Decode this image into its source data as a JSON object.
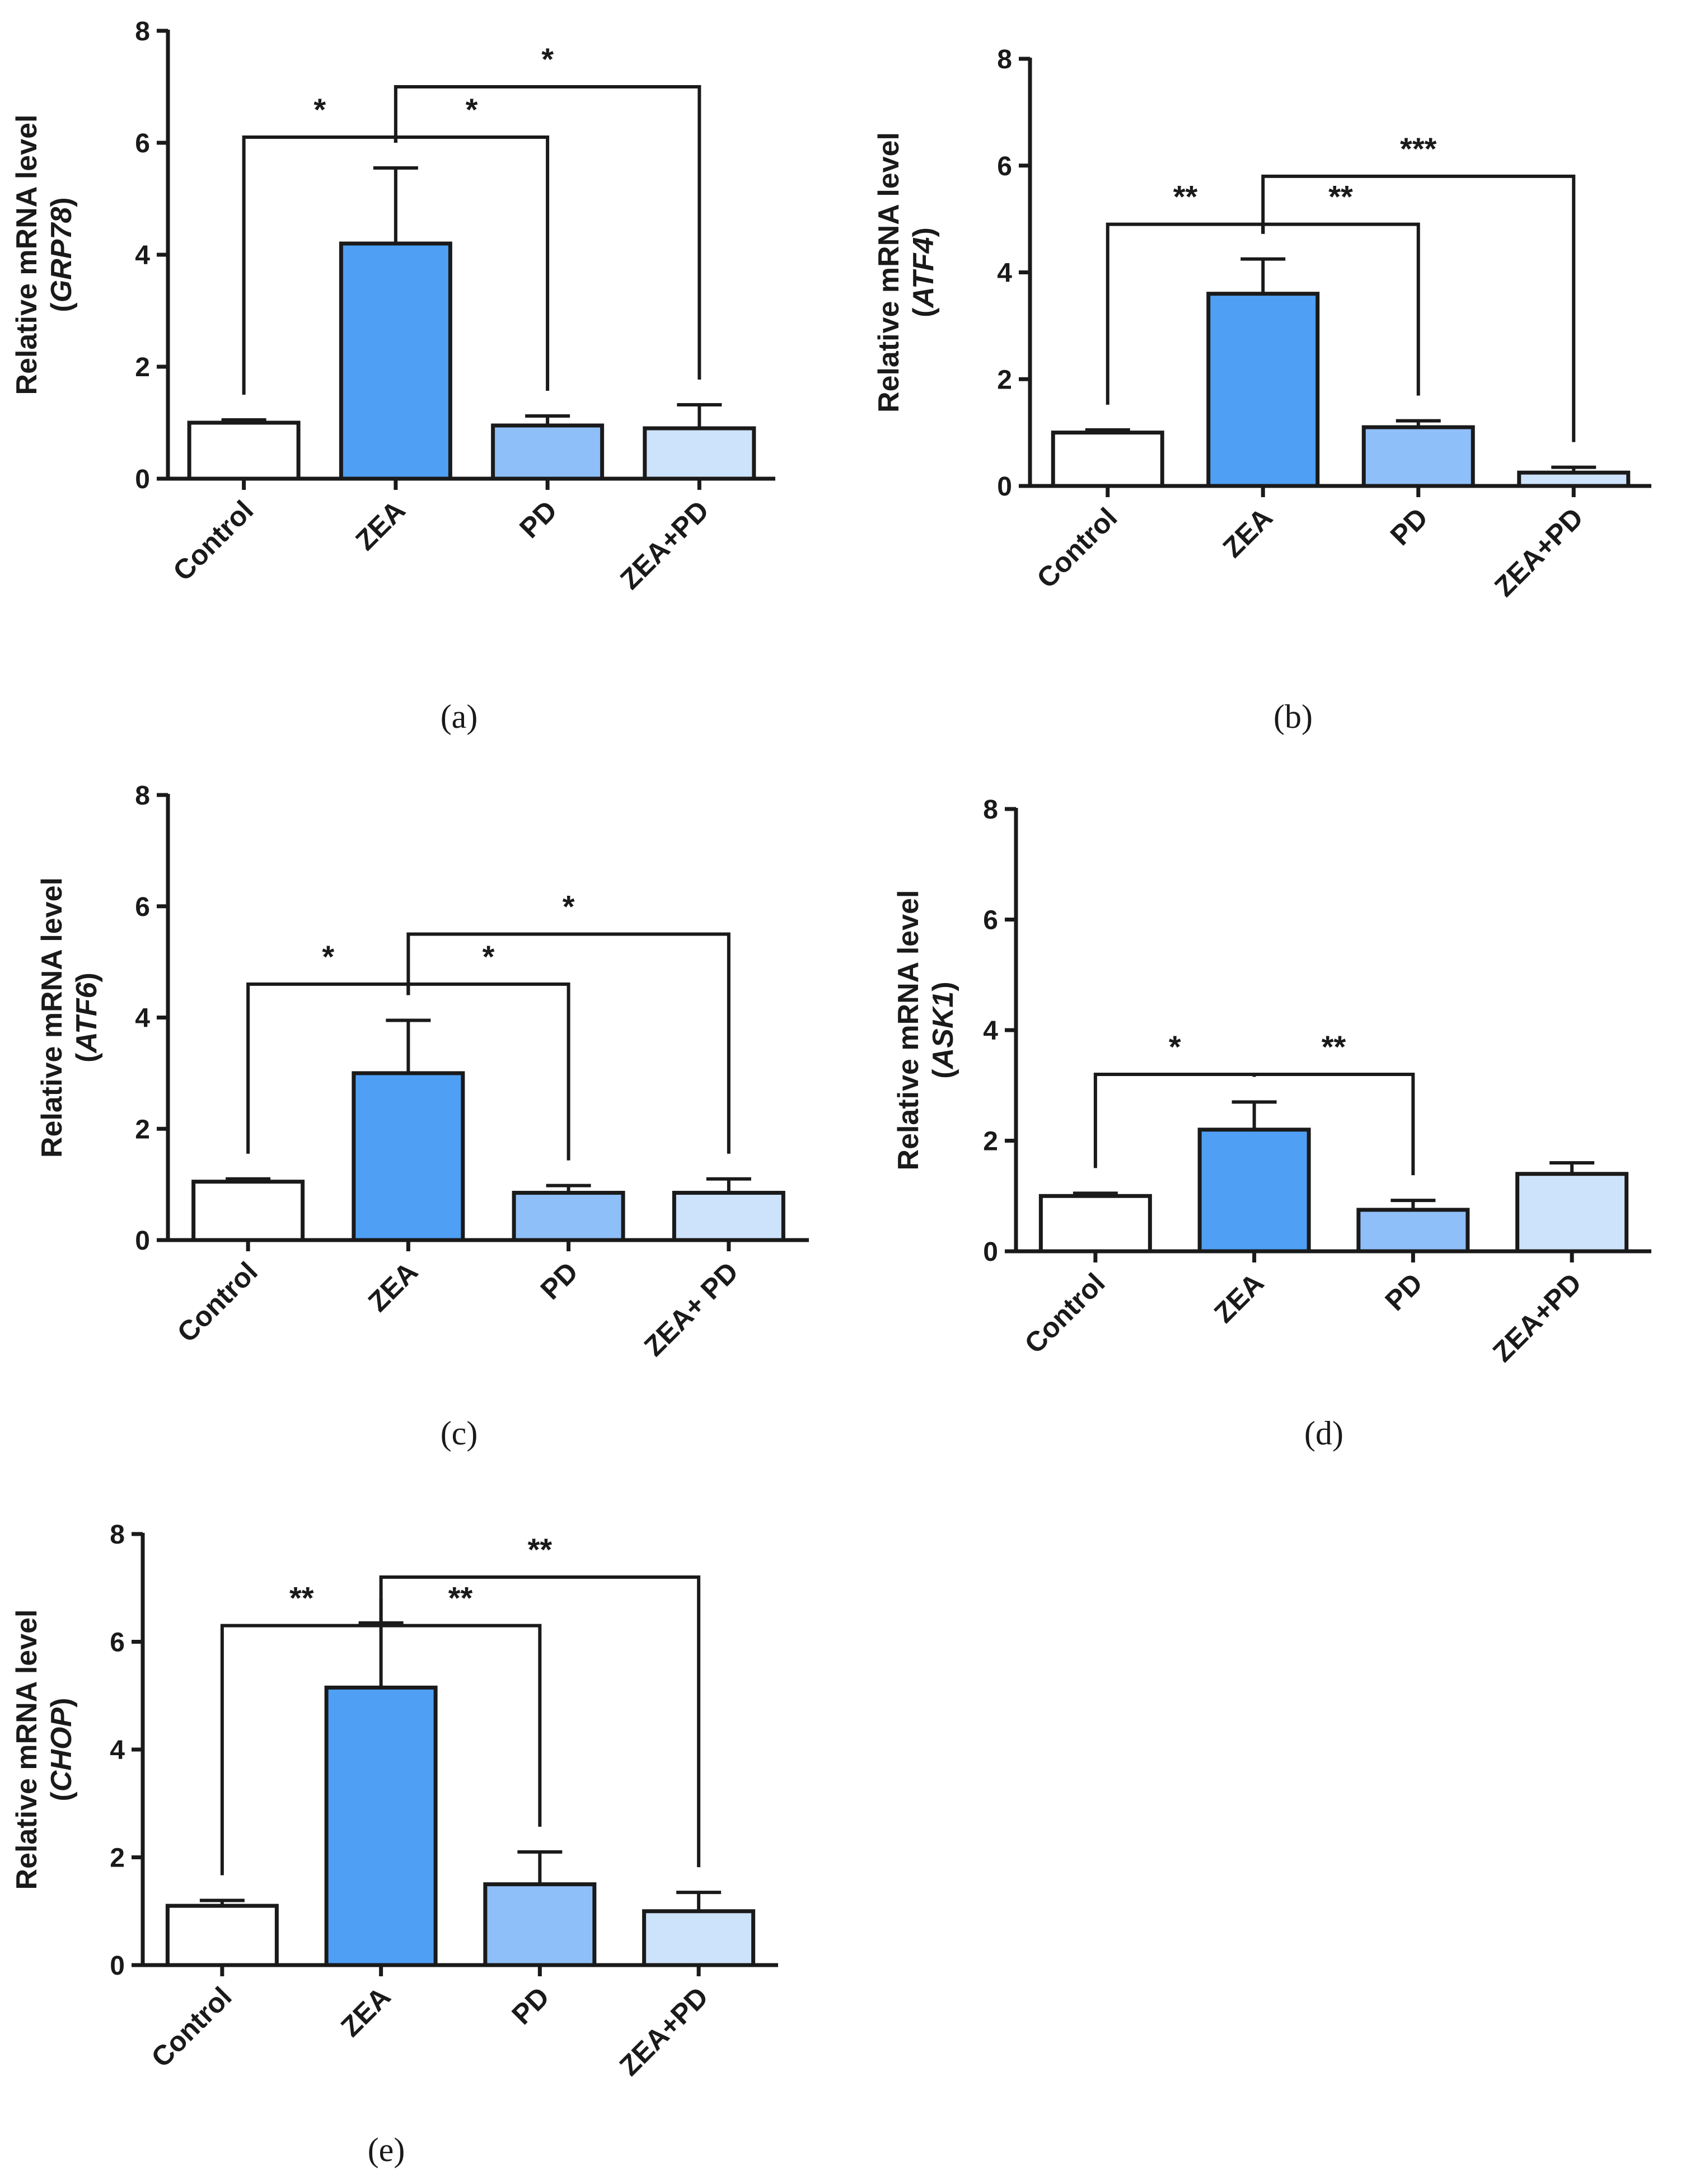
{
  "figure": {
    "colors": {
      "axis": "#1a1a1a",
      "Control": "#ffffff",
      "ZEA": "#4f9ff5",
      "PD": "#8fbff8",
      "ZEA+PD": "#cde2fb"
    }
  },
  "chart_data": [
    {
      "type": "bar",
      "panel_label": "(a)",
      "ylabel": "Relative mRNA level",
      "gene": "GRP78",
      "categories": [
        "Control",
        "ZEA",
        "PD",
        "ZEA+PD"
      ],
      "values": [
        1.0,
        4.2,
        0.95,
        0.9
      ],
      "errors": [
        0.05,
        1.35,
        0.17,
        0.42
      ],
      "ylim": [
        0,
        8
      ],
      "yticks": [
        0,
        2,
        4,
        6,
        8
      ],
      "significance": [
        {
          "from": 0,
          "to": 1,
          "label": "*",
          "level": 6.1
        },
        {
          "from": 1,
          "to": 2,
          "label": "*",
          "level": 6.1
        },
        {
          "from": 1,
          "to": 3,
          "label": "*",
          "level": 7.0
        }
      ]
    },
    {
      "type": "bar",
      "panel_label": "(b)",
      "ylabel": "Relative mRNA level",
      "gene": "ATF4",
      "categories": [
        "Control",
        "ZEA",
        "PD",
        "ZEA+PD"
      ],
      "values": [
        1.0,
        3.6,
        1.1,
        0.25
      ],
      "errors": [
        0.05,
        0.65,
        0.12,
        0.1
      ],
      "ylim": [
        0,
        8
      ],
      "yticks": [
        0,
        2,
        4,
        6,
        8
      ],
      "significance": [
        {
          "from": 0,
          "to": 1,
          "label": "**",
          "level": 4.9
        },
        {
          "from": 1,
          "to": 2,
          "label": "**",
          "level": 4.9
        },
        {
          "from": 1,
          "to": 3,
          "label": "***",
          "level": 5.8
        }
      ]
    },
    {
      "type": "bar",
      "panel_label": "(c)",
      "ylabel": "Relative mRNA level",
      "gene": "ATF6",
      "categories": [
        "Control",
        "ZEA",
        "PD",
        "ZEA+ PD"
      ],
      "values": [
        1.05,
        3.0,
        0.85,
        0.85
      ],
      "errors": [
        0.05,
        0.95,
        0.13,
        0.25
      ],
      "ylim": [
        0,
        8
      ],
      "yticks": [
        0,
        2,
        4,
        6,
        8
      ],
      "significance": [
        {
          "from": 0,
          "to": 1,
          "label": "*",
          "level": 4.6
        },
        {
          "from": 1,
          "to": 2,
          "label": "*",
          "level": 4.6
        },
        {
          "from": 1,
          "to": 3,
          "label": "*",
          "level": 5.5
        }
      ]
    },
    {
      "type": "bar",
      "panel_label": "(d)",
      "ylabel": "Relative mRNA level",
      "gene": "ASK1",
      "categories": [
        "Control",
        "ZEA",
        "PD",
        "ZEA+PD"
      ],
      "values": [
        1.0,
        2.2,
        0.75,
        1.4
      ],
      "errors": [
        0.05,
        0.5,
        0.17,
        0.2
      ],
      "ylim": [
        0,
        8
      ],
      "yticks": [
        0,
        2,
        4,
        6,
        8
      ],
      "significance": [
        {
          "from": 0,
          "to": 1,
          "label": "*",
          "level": 3.2
        },
        {
          "from": 1,
          "to": 2,
          "label": "**",
          "level": 3.2
        }
      ]
    },
    {
      "type": "bar",
      "panel_label": "(e)",
      "ylabel": "Relative mRNA level",
      "gene": "CHOP",
      "categories": [
        "Control",
        "ZEA",
        "PD",
        "ZEA+PD"
      ],
      "values": [
        1.1,
        5.15,
        1.5,
        1.0
      ],
      "errors": [
        0.1,
        1.2,
        0.6,
        0.35
      ],
      "ylim": [
        0,
        8
      ],
      "yticks": [
        0,
        2,
        4,
        6,
        8
      ],
      "significance": [
        {
          "from": 0,
          "to": 1,
          "label": "**",
          "level": 6.3
        },
        {
          "from": 1,
          "to": 2,
          "label": "**",
          "level": 6.3
        },
        {
          "from": 1,
          "to": 3,
          "label": "**",
          "level": 7.2
        }
      ]
    }
  ]
}
